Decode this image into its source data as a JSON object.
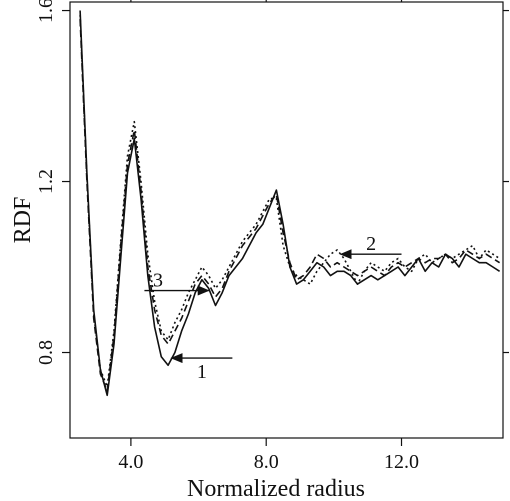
{
  "chart_data": {
    "type": "line",
    "title": "",
    "xlabel": "Normalized radius",
    "ylabel": "RDF",
    "xlim": [
      2.2,
      15.0
    ],
    "ylim": [
      0.6,
      1.62
    ],
    "x_ticks": [
      {
        "value": 4.0,
        "label": "4.0"
      },
      {
        "value": 8.0,
        "label": "8.0"
      },
      {
        "value": 12.0,
        "label": "12.0"
      }
    ],
    "y_ticks": [
      {
        "value": 0.8,
        "label": "0.8"
      },
      {
        "value": 1.2,
        "label": "1.2"
      },
      {
        "value": 1.6,
        "label": "1.6"
      }
    ],
    "grid": false,
    "legend": "none",
    "series": [
      {
        "style": "solid",
        "color": "#111111",
        "x": [
          2.5,
          2.7,
          2.9,
          3.1,
          3.3,
          3.5,
          3.7,
          3.9,
          4.1,
          4.3,
          4.5,
          4.7,
          4.9,
          5.1,
          5.3,
          5.5,
          5.7,
          5.9,
          6.1,
          6.3,
          6.5,
          6.7,
          6.9,
          7.1,
          7.3,
          7.5,
          7.7,
          7.9,
          8.1,
          8.3,
          8.5,
          8.7,
          8.9,
          9.1,
          9.3,
          9.5,
          9.7,
          9.9,
          10.1,
          10.3,
          10.5,
          10.7,
          10.9,
          11.1,
          11.3,
          11.5,
          11.7,
          11.9,
          12.1,
          12.3,
          12.5,
          12.7,
          12.9,
          13.1,
          13.3,
          13.5,
          13.7,
          13.9,
          14.1,
          14.3,
          14.5,
          14.7,
          14.9
        ],
        "y": [
          1.6,
          1.22,
          0.9,
          0.76,
          0.7,
          0.82,
          1.02,
          1.22,
          1.3,
          1.16,
          0.98,
          0.86,
          0.79,
          0.77,
          0.8,
          0.85,
          0.89,
          0.94,
          0.97,
          0.95,
          0.91,
          0.94,
          0.98,
          1.0,
          1.02,
          1.05,
          1.08,
          1.1,
          1.14,
          1.18,
          1.1,
          1.0,
          0.96,
          0.97,
          0.99,
          1.01,
          1.0,
          0.98,
          0.99,
          0.99,
          0.98,
          0.96,
          0.97,
          0.98,
          0.97,
          0.98,
          0.99,
          1.0,
          0.98,
          1.0,
          1.02,
          0.99,
          1.01,
          1.0,
          1.03,
          1.02,
          1.0,
          1.03,
          1.02,
          1.01,
          1.01,
          1.0,
          0.99
        ]
      },
      {
        "style": "dashed",
        "color": "#111111",
        "x": [
          2.5,
          2.7,
          2.9,
          3.1,
          3.3,
          3.5,
          3.7,
          3.9,
          4.1,
          4.3,
          4.5,
          4.7,
          4.9,
          5.1,
          5.3,
          5.5,
          5.7,
          5.9,
          6.1,
          6.3,
          6.5,
          6.7,
          6.9,
          7.1,
          7.3,
          7.5,
          7.7,
          7.9,
          8.1,
          8.3,
          8.5,
          8.7,
          8.9,
          9.1,
          9.3,
          9.5,
          9.7,
          9.9,
          10.1,
          10.3,
          10.5,
          10.7,
          10.9,
          11.1,
          11.3,
          11.5,
          11.7,
          11.9,
          12.1,
          12.3,
          12.5,
          12.7,
          12.9,
          13.1,
          13.3,
          13.5,
          13.7,
          13.9,
          14.1,
          14.3,
          14.5,
          14.7,
          14.9
        ],
        "y": [
          1.58,
          1.2,
          0.88,
          0.75,
          0.71,
          0.84,
          1.05,
          1.24,
          1.32,
          1.18,
          1.0,
          0.9,
          0.84,
          0.82,
          0.85,
          0.88,
          0.92,
          0.96,
          0.98,
          0.96,
          0.93,
          0.95,
          0.99,
          1.02,
          1.05,
          1.07,
          1.09,
          1.12,
          1.15,
          1.17,
          1.08,
          1.01,
          0.97,
          0.98,
          1.0,
          1.03,
          1.02,
          1.0,
          1.01,
          1.0,
          0.99,
          0.98,
          0.99,
          1.0,
          0.99,
          0.98,
          1.0,
          1.01,
          1.0,
          1.01,
          1.02,
          1.01,
          1.02,
          1.02,
          1.03,
          1.01,
          1.02,
          1.04,
          1.03,
          1.02,
          1.03,
          1.02,
          1.01
        ]
      },
      {
        "style": "dotted",
        "color": "#111111",
        "x": [
          2.5,
          2.7,
          2.9,
          3.1,
          3.3,
          3.5,
          3.7,
          3.9,
          4.1,
          4.3,
          4.5,
          4.7,
          4.9,
          5.1,
          5.3,
          5.5,
          5.7,
          5.9,
          6.1,
          6.3,
          6.5,
          6.7,
          6.9,
          7.1,
          7.3,
          7.5,
          7.7,
          7.9,
          8.1,
          8.3,
          8.5,
          8.7,
          8.9,
          9.1,
          9.3,
          9.5,
          9.7,
          9.9,
          10.1,
          10.3,
          10.5,
          10.7,
          10.9,
          11.1,
          11.3,
          11.5,
          11.7,
          11.9,
          12.1,
          12.3,
          12.5,
          12.7,
          12.9,
          13.1,
          13.3,
          13.5,
          13.7,
          13.9,
          14.1,
          14.3,
          14.5,
          14.7,
          14.9
        ],
        "y": [
          1.59,
          1.21,
          0.89,
          0.76,
          0.72,
          0.85,
          1.06,
          1.26,
          1.34,
          1.2,
          1.03,
          0.92,
          0.85,
          0.83,
          0.87,
          0.9,
          0.94,
          0.97,
          1.0,
          0.98,
          0.95,
          0.97,
          1.0,
          1.03,
          1.06,
          1.08,
          1.1,
          1.13,
          1.16,
          1.16,
          1.05,
          1.0,
          0.98,
          0.97,
          0.96,
          0.99,
          1.01,
          1.03,
          1.04,
          1.02,
          0.99,
          0.96,
          0.99,
          1.01,
          1.0,
          0.99,
          1.01,
          1.02,
          1.0,
          0.99,
          1.02,
          1.03,
          1.01,
          1.02,
          1.03,
          1.02,
          1.03,
          1.04,
          1.05,
          1.02,
          1.04,
          1.03,
          1.02
        ]
      }
    ],
    "annotations": [
      {
        "label": "1",
        "tail_x": 7.0,
        "tail_y": 0.787,
        "head_x": 5.2,
        "head_y": 0.787,
        "label_x": 6.1,
        "label_y": 0.74
      },
      {
        "label": "2",
        "tail_x": 12.0,
        "tail_y": 1.03,
        "head_x": 10.2,
        "head_y": 1.03,
        "label_x": 11.1,
        "label_y": 1.04
      },
      {
        "label": "3",
        "tail_x": 4.4,
        "tail_y": 0.945,
        "head_x": 6.3,
        "head_y": 0.945,
        "label_x": 4.8,
        "label_y": 0.955
      }
    ]
  }
}
